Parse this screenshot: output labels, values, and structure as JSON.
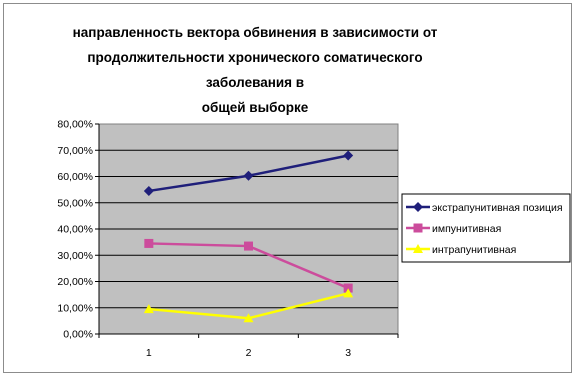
{
  "chart_data": {
    "type": "line",
    "title_lines": [
      "направленность вектора обвинения в зависимости от",
      "продолжительности хронического соматического заболевания в",
      "общей выборке"
    ],
    "x": [
      "1",
      "2",
      "3"
    ],
    "ylim": [
      0,
      80
    ],
    "yticks": [
      "0,00%",
      "10,00%",
      "20,00%",
      "30,00%",
      "40,00%",
      "50,00%",
      "60,00%",
      "70,00%",
      "80,00%"
    ],
    "grid": true,
    "legend_position": "right",
    "plot_background": "#c0c0c0",
    "series": [
      {
        "name": "экстрапунитивная позиция",
        "values": [
          54.5,
          60.3,
          68.0
        ],
        "color": "#1f1f7a",
        "marker": "diamond"
      },
      {
        "name": "импунитивная",
        "values": [
          34.5,
          33.5,
          17.5
        ],
        "color": "#cc4c9c",
        "marker": "square"
      },
      {
        "name": "интрапунитивная",
        "values": [
          9.5,
          6.0,
          15.5
        ],
        "color": "#ffff00",
        "marker": "triangle"
      }
    ]
  }
}
